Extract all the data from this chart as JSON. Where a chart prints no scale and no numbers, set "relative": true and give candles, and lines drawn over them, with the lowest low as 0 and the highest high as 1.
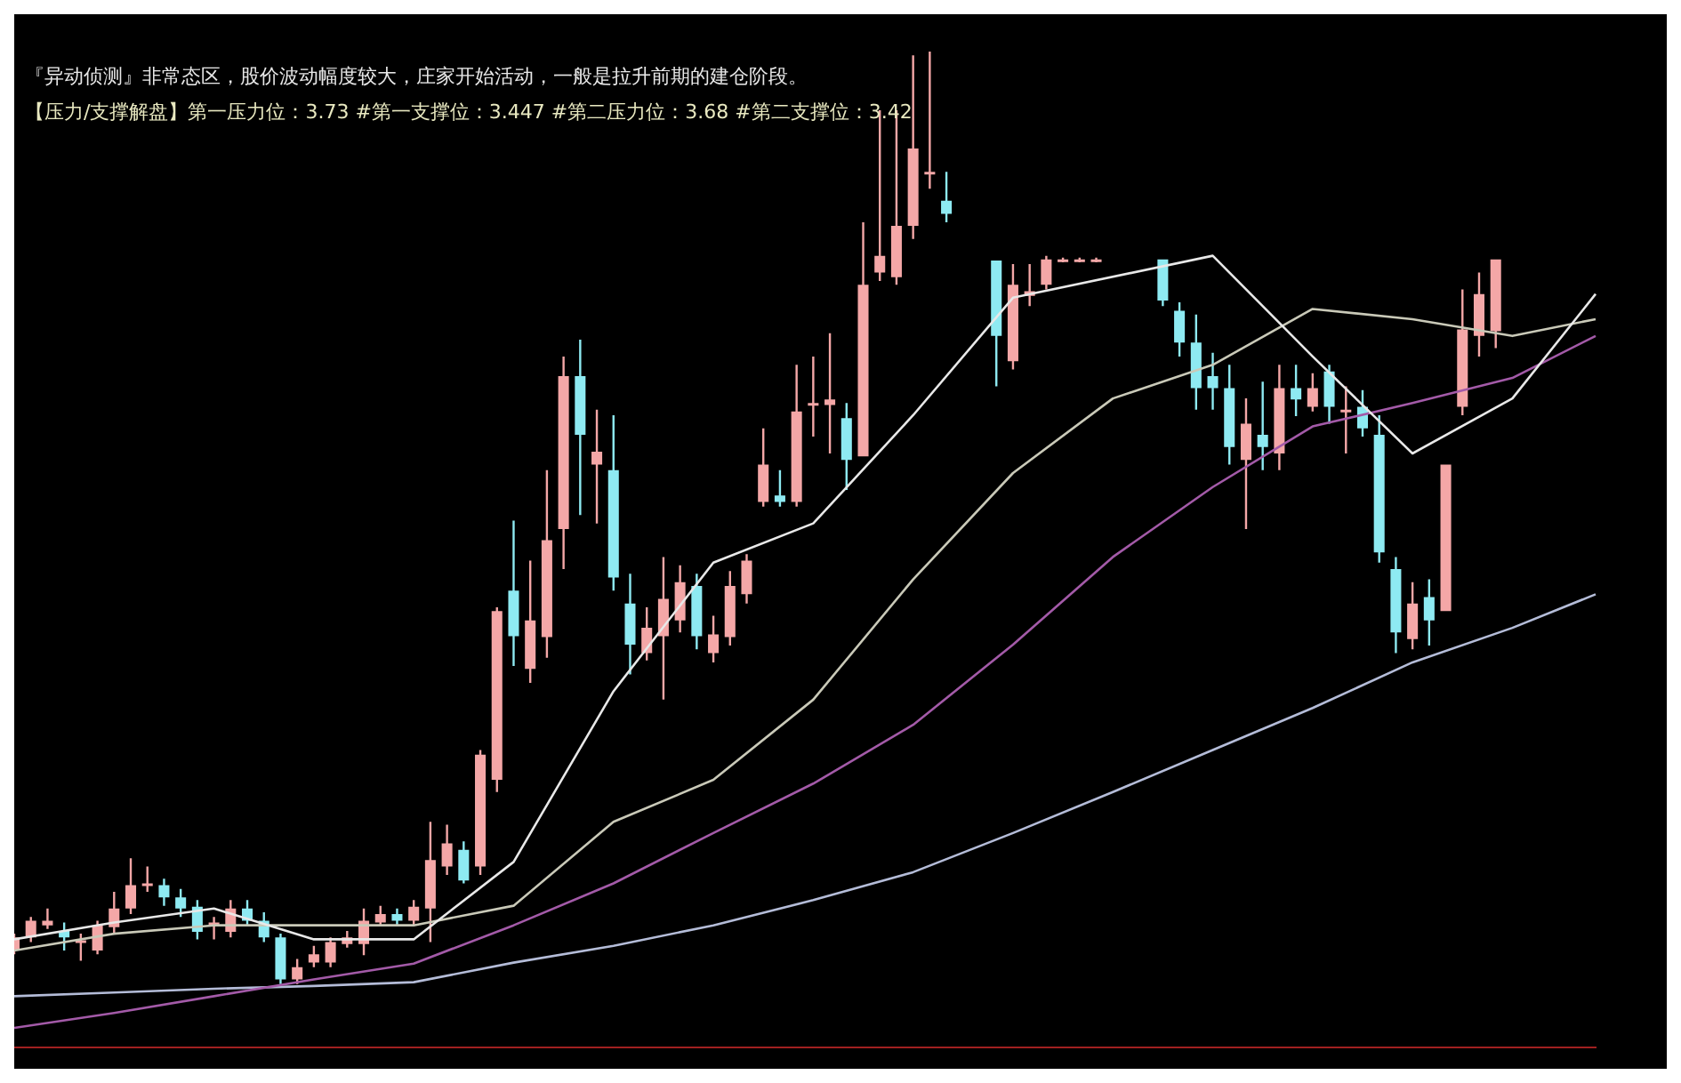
{
  "chart_data": {
    "type": "candlestick",
    "relative": true,
    "legend": false,
    "grid": false,
    "tick_labels": false,
    "annotations": [
      "『异动侦测』非常态区，股价波动幅度较大，庄家开始活动，一般是拉升前期的建仓阶段。",
      "【压力/支撑解盘】第一压力位：3.73 #第一支撑位：3.447 #第二压力位：3.68 #第二支撑位：3.42"
    ],
    "categories": [
      null,
      null,
      null,
      null,
      null,
      null,
      null,
      null,
      null,
      null,
      null,
      null,
      null,
      null,
      null,
      null,
      null,
      null,
      null,
      null,
      null,
      null,
      null,
      null,
      null,
      null,
      null,
      null,
      null,
      null,
      null,
      null,
      null,
      null,
      null,
      null,
      null,
      null,
      null,
      null,
      null,
      null,
      null,
      null,
      null,
      null,
      null,
      null,
      null,
      null,
      null,
      null,
      null,
      null,
      null,
      null,
      null,
      null,
      null,
      null,
      null,
      null,
      null,
      null,
      null,
      null,
      null,
      null,
      null,
      null,
      null,
      null,
      null,
      null,
      null,
      null,
      null,
      null,
      null,
      null,
      null,
      null,
      null,
      null,
      null,
      null,
      null,
      null,
      null,
      null,
      null,
      null,
      null,
      null,
      null,
      null
    ],
    "ohlc": [
      [
        0.036,
        0.054,
        0.032,
        0.05
      ],
      [
        0.05,
        0.072,
        0.045,
        0.068
      ],
      [
        0.063,
        0.081,
        0.059,
        0.068
      ],
      [
        0.057,
        0.066,
        0.036,
        0.05
      ],
      [
        0.047,
        0.054,
        0.025,
        0.047
      ],
      [
        0.036,
        0.068,
        0.032,
        0.063
      ],
      [
        0.061,
        0.099,
        0.054,
        0.081
      ],
      [
        0.081,
        0.135,
        0.075,
        0.106
      ],
      [
        0.108,
        0.126,
        0.099,
        0.108
      ],
      [
        0.106,
        0.113,
        0.084,
        0.093
      ],
      [
        0.093,
        0.102,
        0.072,
        0.081
      ],
      [
        0.083,
        0.09,
        0.048,
        0.056
      ],
      [
        0.066,
        0.072,
        0.048,
        0.066
      ],
      [
        0.056,
        0.09,
        0.05,
        0.081
      ],
      [
        0.081,
        0.09,
        0.063,
        0.068
      ],
      [
        0.068,
        0.077,
        0.045,
        0.05
      ],
      [
        0.05,
        0.054,
        0,
        0.005
      ],
      [
        0.005,
        0.027,
        0,
        0.018
      ],
      [
        0.023,
        0.041,
        0.018,
        0.032
      ],
      [
        0.023,
        0.05,
        0.018,
        0.045
      ],
      [
        0.043,
        0.057,
        0.039,
        0.05
      ],
      [
        0.043,
        0.081,
        0.031,
        0.068
      ],
      [
        0.066,
        0.084,
        0.063,
        0.075
      ],
      [
        0.075,
        0.081,
        0.063,
        0.068
      ],
      [
        0.068,
        0.09,
        0.063,
        0.083
      ],
      [
        0.081,
        0.174,
        0.045,
        0.133
      ],
      [
        0.126,
        0.171,
        0.117,
        0.151
      ],
      [
        0.144,
        0.153,
        0.108,
        0.111
      ],
      [
        0.126,
        0.251,
        0.117,
        0.246
      ],
      [
        0.219,
        0.404,
        0.206,
        0.4
      ],
      [
        0.422,
        0.497,
        0.341,
        0.373
      ],
      [
        0.338,
        0.454,
        0.323,
        0.39
      ],
      [
        0.372,
        0.551,
        0.35,
        0.476
      ],
      [
        0.488,
        0.673,
        0.445,
        0.652
      ],
      [
        0.652,
        0.691,
        0.503,
        0.589
      ],
      [
        0.557,
        0.616,
        0.494,
        0.571
      ],
      [
        0.551,
        0.61,
        0.422,
        0.436
      ],
      [
        0.408,
        0.44,
        0.332,
        0.364
      ],
      [
        0.355,
        0.404,
        0.347,
        0.382
      ],
      [
        0.373,
        0.458,
        0.305,
        0.413
      ],
      [
        0.39,
        0.449,
        0.377,
        0.431
      ],
      [
        0.427,
        0.44,
        0.359,
        0.373
      ],
      [
        0.355,
        0.395,
        0.345,
        0.375
      ],
      [
        0.372,
        0.443,
        0.363,
        0.427
      ],
      [
        0.418,
        0.461,
        0.408,
        0.454
      ],
      [
        0.517,
        0.596,
        0.512,
        0.557
      ],
      [
        0.524,
        0.551,
        0.512,
        0.517
      ],
      [
        0.517,
        0.664,
        0.512,
        0.614
      ],
      [
        0.623,
        0.673,
        0.587,
        0.623
      ],
      [
        0.621,
        0.698,
        0.569,
        0.627
      ],
      [
        0.607,
        0.623,
        0.53,
        0.562
      ],
      [
        0.566,
        0.817,
        0.566,
        0.75
      ],
      [
        0.763,
        0.937,
        0.754,
        0.781
      ],
      [
        0.758,
        0.937,
        0.75,
        0.813
      ],
      [
        0.813,
        0.996,
        0.799,
        0.896
      ],
      [
        0.871,
        1,
        0.853,
        0.871
      ],
      [
        0.84,
        0.871,
        0.817,
        0.826
      ],
      null,
      null,
      [
        0.776,
        0.776,
        0.641,
        0.695
      ],
      [
        0.668,
        0.772,
        0.659,
        0.75
      ],
      [
        0.738,
        0.772,
        0.727,
        0.743
      ],
      [
        0.75,
        0.781,
        0.745,
        0.777
      ],
      [
        0.777,
        0.779,
        0.774,
        0.777
      ],
      [
        0.777,
        0.779,
        0.774,
        0.777
      ],
      [
        0.777,
        0.779,
        0.774,
        0.777
      ],
      null,
      null,
      null,
      [
        0.777,
        0.777,
        0.727,
        0.733
      ],
      [
        0.722,
        0.731,
        0.673,
        0.688
      ],
      [
        0.688,
        0.718,
        0.616,
        0.639
      ],
      [
        0.652,
        0.677,
        0.616,
        0.639
      ],
      [
        0.639,
        0.664,
        0.557,
        0.576
      ],
      [
        0.562,
        0.628,
        0.488,
        0.601
      ],
      [
        0.589,
        0.646,
        0.551,
        0.576
      ],
      [
        0.569,
        0.664,
        0.551,
        0.639
      ],
      [
        0.639,
        0.664,
        0.609,
        0.627
      ],
      [
        0.619,
        0.655,
        0.614,
        0.639
      ],
      [
        0.657,
        0.664,
        0.601,
        0.619
      ],
      [
        0.616,
        0.641,
        0.569,
        0.616
      ],
      [
        0.619,
        0.637,
        0.587,
        0.596
      ],
      [
        0.589,
        0.61,
        0.452,
        0.463
      ],
      [
        0.445,
        0.458,
        0.355,
        0.377
      ],
      [
        0.37,
        0.431,
        0.359,
        0.408
      ],
      [
        0.415,
        0.434,
        0.363,
        0.39
      ],
      [
        0.4,
        0.557,
        0.4,
        0.557
      ],
      [
        0.619,
        0.745,
        0.61,
        0.702
      ],
      [
        0.695,
        0.763,
        0.673,
        0.74
      ],
      [
        0.7,
        0.777,
        0.682,
        0.777
      ],
      null,
      null,
      null,
      null,
      null,
      null
    ],
    "series": [
      {
        "type": "line",
        "color": "#e8e8e8",
        "values": [
          0.048,
          null,
          null,
          null,
          null,
          null,
          0.066,
          null,
          null,
          null,
          null,
          null,
          0.081,
          null,
          null,
          null,
          null,
          null,
          0.048,
          null,
          null,
          null,
          null,
          null,
          0.048,
          null,
          null,
          null,
          null,
          null,
          0.131,
          null,
          null,
          null,
          null,
          null,
          0.314,
          null,
          null,
          null,
          null,
          null,
          0.452,
          null,
          null,
          null,
          null,
          null,
          0.494,
          null,
          null,
          null,
          null,
          null,
          0.61,
          null,
          null,
          null,
          null,
          null,
          0.736,
          null,
          null,
          null,
          null,
          null,
          null,
          null,
          null,
          null,
          null,
          null,
          0.781,
          null,
          null,
          null,
          null,
          null,
          0.673,
          null,
          null,
          null,
          null,
          null,
          0.569,
          null,
          null,
          null,
          null,
          null,
          0.628,
          null,
          null,
          null,
          null,
          0.74
        ]
      },
      {
        "type": "line",
        "color": "#c9c9b8",
        "values": [
          0.036,
          null,
          null,
          null,
          null,
          null,
          0.054,
          null,
          null,
          null,
          null,
          null,
          0.063,
          null,
          null,
          null,
          null,
          null,
          0.063,
          null,
          null,
          null,
          null,
          null,
          0.063,
          null,
          null,
          null,
          null,
          null,
          0.084,
          null,
          null,
          null,
          null,
          null,
          0.174,
          null,
          null,
          null,
          null,
          null,
          0.219,
          null,
          null,
          null,
          null,
          null,
          0.305,
          null,
          null,
          null,
          null,
          null,
          0.434,
          null,
          null,
          null,
          null,
          null,
          0.548,
          null,
          null,
          null,
          null,
          null,
          0.628,
          null,
          null,
          null,
          null,
          null,
          0.664,
          null,
          null,
          null,
          null,
          null,
          0.724,
          null,
          null,
          null,
          null,
          null,
          0.713,
          null,
          null,
          null,
          null,
          null,
          0.695,
          null,
          null,
          null,
          null,
          0.713
        ]
      },
      {
        "type": "line",
        "color": "#a35aa8",
        "values": [
          -0.047,
          null,
          null,
          null,
          null,
          null,
          -0.031,
          null,
          null,
          null,
          null,
          null,
          -0.013,
          null,
          null,
          null,
          null,
          null,
          0.005,
          null,
          null,
          null,
          null,
          null,
          0.022,
          null,
          null,
          null,
          null,
          null,
          0.063,
          null,
          null,
          null,
          null,
          null,
          0.108,
          null,
          null,
          null,
          null,
          null,
          0.162,
          null,
          null,
          null,
          null,
          null,
          0.215,
          null,
          null,
          null,
          null,
          null,
          0.278,
          null,
          null,
          null,
          null,
          null,
          0.364,
          null,
          null,
          null,
          null,
          null,
          0.458,
          null,
          null,
          null,
          null,
          null,
          0.533,
          null,
          null,
          null,
          null,
          null,
          0.598,
          null,
          null,
          null,
          null,
          null,
          0.623,
          null,
          null,
          null,
          null,
          null,
          0.65,
          null,
          null,
          null,
          null,
          0.695
        ]
      },
      {
        "type": "line",
        "color": "#b4bcd8",
        "values": [
          -0.013,
          null,
          null,
          null,
          null,
          null,
          -0.009,
          null,
          null,
          null,
          null,
          null,
          -0.005,
          null,
          null,
          null,
          null,
          null,
          -0.002,
          null,
          null,
          null,
          null,
          null,
          0.002,
          null,
          null,
          null,
          null,
          null,
          0.023,
          null,
          null,
          null,
          null,
          null,
          0.041,
          null,
          null,
          null,
          null,
          null,
          0.063,
          null,
          null,
          null,
          null,
          null,
          0.09,
          null,
          null,
          null,
          null,
          null,
          0.12,
          null,
          null,
          null,
          null,
          null,
          0.162,
          null,
          null,
          null,
          null,
          null,
          0.206,
          null,
          null,
          null,
          null,
          null,
          0.251,
          null,
          null,
          null,
          null,
          null,
          0.296,
          null,
          null,
          null,
          null,
          null,
          0.345,
          null,
          null,
          null,
          null,
          null,
          0.382,
          null,
          null,
          null,
          null,
          0.418
        ]
      }
    ]
  }
}
